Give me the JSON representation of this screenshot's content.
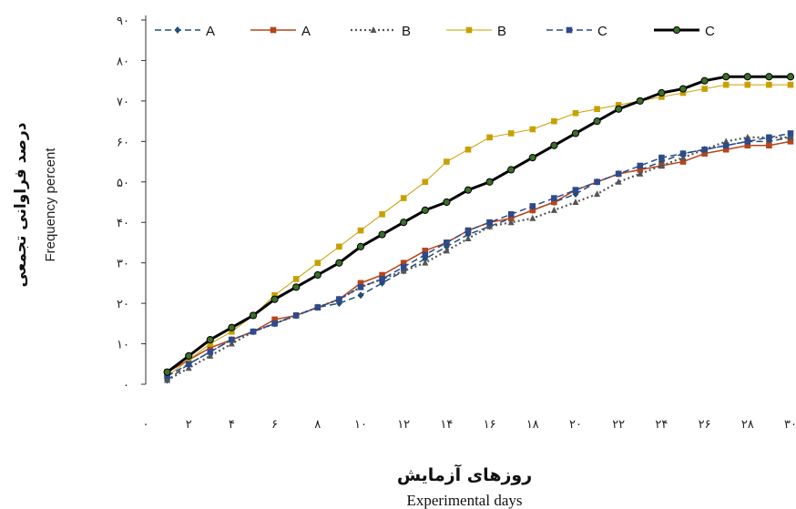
{
  "chart_data": {
    "type": "line",
    "xlabel_fa": "روزهای آزمایش",
    "xlabel_en": "Experimental days",
    "ylabel_fa": "درصد فراوانی تجمعی",
    "ylabel_en": "Frequency percent",
    "xlim": [
      0,
      30
    ],
    "ylim": [
      0,
      90
    ],
    "x_ticks": [
      0,
      2,
      4,
      6,
      8,
      10,
      12,
      14,
      16,
      18,
      20,
      22,
      24,
      26,
      28,
      30
    ],
    "x_tick_labels": [
      "۰",
      "۲",
      "۴",
      "۶",
      "۸",
      "۱۰",
      "۱۲",
      "۱۴",
      "۱۶",
      "۱۸",
      "۲۰",
      "۲۲",
      "۲۴",
      "۲۶",
      "۲۸",
      "۳۰"
    ],
    "y_ticks": [
      0,
      10,
      20,
      30,
      40,
      50,
      60,
      70,
      80,
      90
    ],
    "y_tick_labels": [
      "۰",
      "۱۰",
      "۲۰",
      "۳۰",
      "۴۰",
      "۵۰",
      "۶۰",
      "۷۰",
      "۸۰",
      "۹۰"
    ],
    "legend_position": "top",
    "x": [
      1,
      2,
      3,
      4,
      5,
      6,
      7,
      8,
      9,
      10,
      11,
      12,
      13,
      14,
      15,
      16,
      17,
      18,
      19,
      20,
      21,
      22,
      23,
      24,
      25,
      26,
      27,
      28,
      29,
      30
    ],
    "series": [
      {
        "name": "A",
        "style": "dashed",
        "marker": "diamond",
        "color": "#1f4e79",
        "values": [
          1,
          5,
          8,
          11,
          13,
          15,
          17,
          19,
          20,
          22,
          25,
          28,
          31,
          34,
          37,
          39,
          41,
          43,
          45,
          47,
          50,
          52,
          53,
          55,
          57,
          58,
          59,
          60,
          60,
          61
        ]
      },
      {
        "name": "A",
        "style": "solid",
        "marker": "square",
        "color": "#b5451b",
        "values": [
          3,
          6,
          9,
          11,
          13,
          16,
          17,
          19,
          21,
          25,
          27,
          30,
          33,
          35,
          38,
          40,
          41,
          43,
          45,
          48,
          50,
          52,
          53,
          54,
          55,
          57,
          58,
          59,
          59,
          60
        ]
      },
      {
        "name": "B",
        "style": "dotted",
        "marker": "triangle",
        "color": "#555555",
        "values": [
          1,
          4,
          7,
          10,
          13,
          15,
          17,
          19,
          21,
          24,
          26,
          28,
          30,
          33,
          36,
          39,
          40,
          41,
          43,
          45,
          47,
          50,
          52,
          54,
          56,
          58,
          60,
          61,
          61,
          61
        ]
      },
      {
        "name": "B",
        "style": "thin-solid",
        "marker": "square",
        "color": "#c8a000",
        "values": [
          2,
          6,
          10,
          13,
          17,
          22,
          26,
          30,
          34,
          38,
          42,
          46,
          50,
          55,
          58,
          61,
          62,
          63,
          65,
          67,
          68,
          69,
          70,
          71,
          72,
          73,
          74,
          74,
          74,
          74
        ]
      },
      {
        "name": "C",
        "style": "dashed",
        "marker": "square",
        "color": "#2e4a8a",
        "values": [
          2,
          5,
          8,
          11,
          13,
          15,
          17,
          19,
          21,
          24,
          26,
          29,
          32,
          35,
          38,
          40,
          42,
          44,
          46,
          48,
          50,
          52,
          54,
          56,
          57,
          58,
          59,
          60,
          61,
          62
        ]
      },
      {
        "name": "C",
        "style": "thick-solid",
        "marker": "circle",
        "color": "#000000",
        "values": [
          3,
          7,
          11,
          14,
          17,
          21,
          24,
          27,
          30,
          34,
          37,
          40,
          43,
          45,
          48,
          50,
          53,
          56,
          59,
          62,
          65,
          68,
          70,
          72,
          73,
          75,
          76,
          76,
          76,
          76
        ]
      }
    ]
  }
}
